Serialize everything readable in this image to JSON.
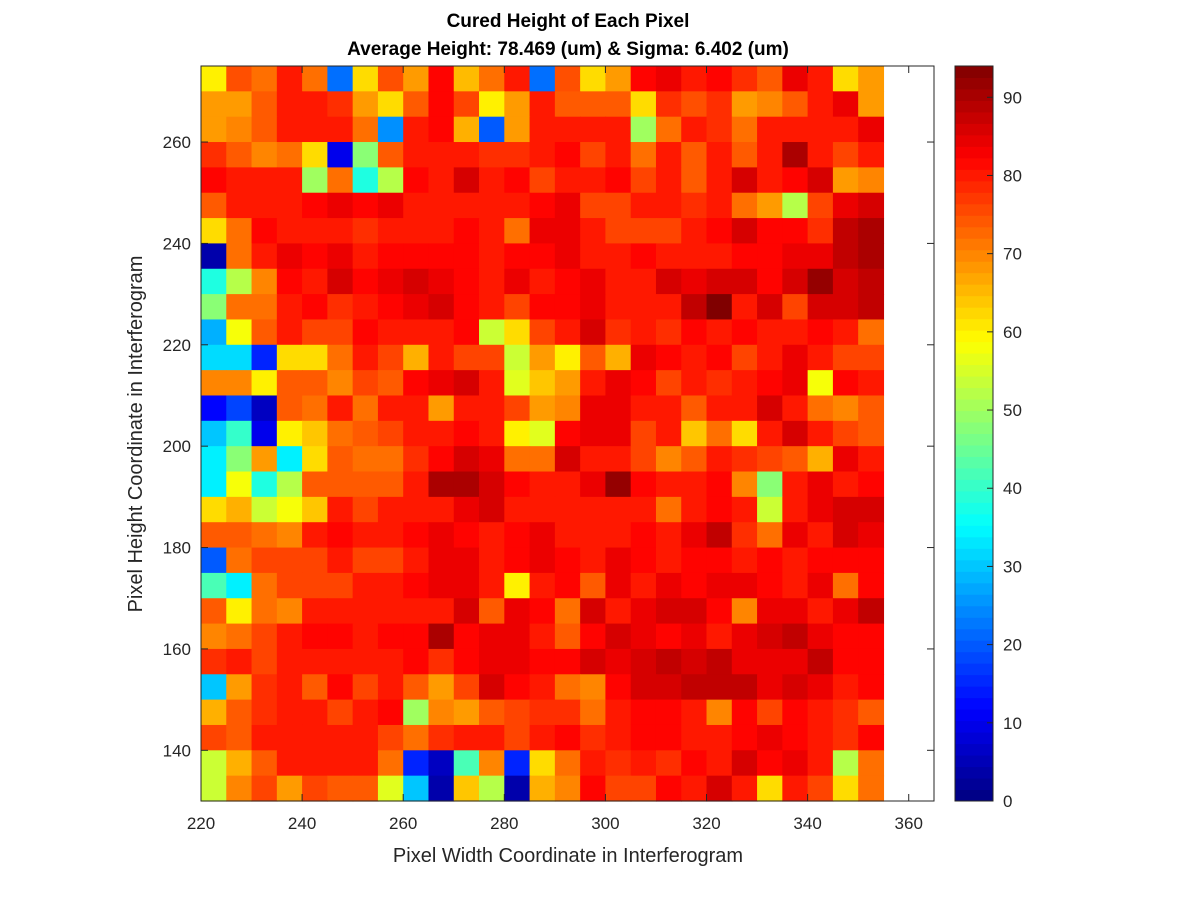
{
  "chart_data": {
    "type": "heatmap",
    "title": "Cured Height of Each Pixel",
    "subtitle": "Average Height: 78.469 (um) & Sigma: 6.402 (um)",
    "xlabel": "Pixel Width Coordinate in Interferogram",
    "ylabel": "Pixel Height Coordinate in Interferogram",
    "xlim": [
      220,
      365
    ],
    "ylim": [
      130,
      275
    ],
    "cell_size": 5,
    "xticks": [
      "220",
      "240",
      "260",
      "280",
      "300",
      "320",
      "340",
      "360"
    ],
    "yticks": [
      "140",
      "160",
      "180",
      "200",
      "220",
      "240",
      "260"
    ],
    "colorbar": {
      "colormap": "jet",
      "clim": [
        0,
        94
      ],
      "ticks": [
        "0",
        "10",
        "20",
        "30",
        "40",
        "50",
        "60",
        "70",
        "80",
        "90"
      ]
    },
    "grid": false,
    "rows_top_to_bottom": [
      [
        60,
        75,
        72,
        80,
        72,
        22,
        62,
        75,
        68,
        82,
        65,
        72,
        80,
        22,
        75,
        62,
        68,
        82,
        84,
        80,
        82,
        78,
        74,
        84,
        80,
        62,
        68
      ],
      [
        68,
        68,
        74,
        80,
        80,
        78,
        68,
        62,
        74,
        82,
        76,
        60,
        68,
        80,
        74,
        74,
        74,
        62,
        78,
        75,
        78,
        68,
        70,
        74,
        80,
        84,
        68
      ],
      [
        68,
        70,
        74,
        80,
        80,
        80,
        72,
        25,
        80,
        82,
        66,
        20,
        68,
        80,
        80,
        80,
        80,
        50,
        72,
        80,
        78,
        72,
        80,
        80,
        80,
        80,
        84
      ],
      [
        78,
        74,
        70,
        72,
        62,
        10,
        48,
        74,
        80,
        80,
        80,
        78,
        78,
        80,
        82,
        76,
        80,
        72,
        80,
        74,
        80,
        74,
        80,
        90,
        80,
        76,
        80
      ],
      [
        82,
        80,
        80,
        80,
        50,
        72,
        38,
        52,
        82,
        80,
        86,
        80,
        82,
        76,
        80,
        80,
        82,
        76,
        80,
        74,
        80,
        86,
        80,
        82,
        86,
        68,
        70
      ],
      [
        74,
        80,
        80,
        80,
        82,
        84,
        82,
        84,
        80,
        80,
        80,
        80,
        80,
        82,
        84,
        76,
        76,
        80,
        80,
        78,
        80,
        72,
        68,
        52,
        76,
        84,
        86
      ],
      [
        62,
        72,
        82,
        80,
        80,
        80,
        78,
        80,
        80,
        80,
        82,
        80,
        72,
        84,
        84,
        80,
        76,
        76,
        76,
        80,
        82,
        86,
        82,
        82,
        78,
        88,
        90
      ],
      [
        4,
        72,
        80,
        84,
        82,
        84,
        80,
        82,
        82,
        82,
        82,
        80,
        82,
        82,
        84,
        80,
        80,
        82,
        80,
        80,
        80,
        82,
        82,
        84,
        84,
        88,
        90
      ],
      [
        38,
        52,
        70,
        82,
        80,
        86,
        82,
        84,
        86,
        84,
        82,
        80,
        84,
        80,
        82,
        84,
        80,
        80,
        86,
        84,
        86,
        86,
        82,
        86,
        92,
        86,
        88
      ],
      [
        48,
        72,
        72,
        80,
        82,
        78,
        80,
        82,
        84,
        86,
        82,
        80,
        76,
        82,
        82,
        84,
        80,
        80,
        80,
        88,
        94,
        80,
        86,
        76,
        86,
        86,
        88
      ],
      [
        28,
        58,
        74,
        80,
        76,
        76,
        82,
        80,
        80,
        80,
        82,
        54,
        62,
        76,
        80,
        86,
        78,
        80,
        78,
        82,
        80,
        82,
        80,
        80,
        82,
        80,
        72
      ],
      [
        32,
        32,
        15,
        62,
        62,
        72,
        80,
        76,
        66,
        80,
        76,
        76,
        54,
        68,
        60,
        74,
        66,
        84,
        82,
        80,
        82,
        76,
        80,
        84,
        80,
        76,
        76
      ],
      [
        70,
        70,
        60,
        74,
        74,
        70,
        76,
        74,
        82,
        84,
        86,
        80,
        56,
        64,
        68,
        80,
        84,
        82,
        76,
        80,
        78,
        80,
        82,
        84,
        58,
        82,
        80
      ],
      [
        12,
        18,
        6,
        74,
        72,
        80,
        72,
        80,
        80,
        68,
        80,
        80,
        76,
        68,
        70,
        84,
        84,
        80,
        80,
        74,
        80,
        80,
        86,
        80,
        72,
        70,
        74
      ],
      [
        30,
        40,
        10,
        60,
        64,
        72,
        74,
        76,
        80,
        80,
        82,
        80,
        60,
        56,
        82,
        84,
        84,
        76,
        80,
        64,
        72,
        62,
        80,
        86,
        80,
        76,
        74
      ],
      [
        34,
        48,
        68,
        34,
        62,
        74,
        72,
        72,
        78,
        82,
        86,
        84,
        72,
        72,
        86,
        80,
        80,
        76,
        70,
        74,
        80,
        78,
        76,
        74,
        66,
        84,
        80
      ],
      [
        34,
        58,
        38,
        52,
        74,
        74,
        74,
        74,
        80,
        90,
        90,
        86,
        82,
        80,
        80,
        84,
        92,
        82,
        80,
        80,
        82,
        70,
        48,
        80,
        84,
        80,
        82
      ],
      [
        62,
        66,
        54,
        58,
        64,
        80,
        76,
        80,
        80,
        80,
        84,
        86,
        80,
        80,
        80,
        80,
        80,
        80,
        72,
        80,
        82,
        80,
        54,
        80,
        84,
        86,
        86
      ],
      [
        74,
        74,
        72,
        70,
        80,
        82,
        80,
        80,
        82,
        84,
        82,
        80,
        82,
        84,
        80,
        80,
        80,
        82,
        80,
        84,
        88,
        78,
        72,
        84,
        80,
        86,
        84
      ],
      [
        20,
        72,
        76,
        76,
        76,
        80,
        76,
        76,
        80,
        84,
        84,
        80,
        82,
        84,
        82,
        80,
        84,
        82,
        80,
        82,
        82,
        80,
        82,
        80,
        82,
        82,
        82
      ],
      [
        42,
        34,
        72,
        76,
        76,
        76,
        80,
        80,
        82,
        84,
        84,
        80,
        60,
        80,
        82,
        74,
        84,
        80,
        84,
        82,
        84,
        84,
        82,
        80,
        84,
        72,
        82
      ],
      [
        74,
        60,
        72,
        70,
        80,
        80,
        80,
        80,
        80,
        80,
        86,
        74,
        84,
        82,
        72,
        86,
        80,
        84,
        86,
        86,
        82,
        70,
        84,
        84,
        80,
        84,
        88
      ],
      [
        70,
        72,
        76,
        80,
        82,
        82,
        80,
        82,
        82,
        90,
        82,
        84,
        84,
        80,
        74,
        82,
        86,
        84,
        82,
        84,
        80,
        84,
        86,
        88,
        84,
        82,
        82
      ],
      [
        78,
        80,
        76,
        80,
        80,
        80,
        80,
        80,
        82,
        78,
        82,
        84,
        84,
        82,
        82,
        86,
        84,
        86,
        88,
        86,
        88,
        84,
        84,
        84,
        88,
        82,
        82
      ],
      [
        30,
        68,
        78,
        80,
        74,
        82,
        76,
        80,
        74,
        68,
        76,
        86,
        82,
        80,
        72,
        70,
        82,
        86,
        86,
        88,
        88,
        88,
        84,
        86,
        84,
        80,
        82
      ],
      [
        66,
        74,
        78,
        80,
        80,
        76,
        80,
        82,
        50,
        70,
        68,
        74,
        76,
        78,
        78,
        72,
        80,
        82,
        82,
        80,
        70,
        82,
        76,
        82,
        80,
        78,
        74
      ],
      [
        76,
        74,
        80,
        80,
        80,
        80,
        80,
        76,
        72,
        78,
        80,
        80,
        76,
        80,
        82,
        78,
        80,
        82,
        82,
        80,
        80,
        82,
        84,
        82,
        80,
        78,
        82
      ],
      [
        54,
        66,
        74,
        80,
        80,
        80,
        80,
        72,
        15,
        6,
        42,
        70,
        15,
        62,
        72,
        80,
        78,
        80,
        78,
        82,
        80,
        86,
        82,
        84,
        80,
        52,
        72
      ],
      [
        54,
        70,
        76,
        68,
        76,
        74,
        74,
        56,
        30,
        4,
        64,
        52,
        4,
        66,
        70,
        82,
        76,
        76,
        82,
        80,
        86,
        80,
        62,
        80,
        76,
        62,
        72
      ]
    ]
  }
}
